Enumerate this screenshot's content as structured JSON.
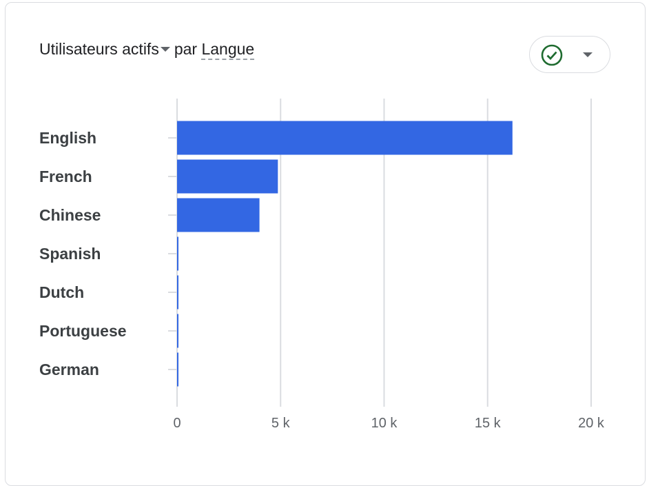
{
  "header": {
    "metric_label": "Utilisateurs actifs",
    "by_label": "par",
    "dimension_label": "Langue",
    "status_icon": "check-circle-icon",
    "status_color": "#1e6b2f"
  },
  "chart_data": {
    "type": "bar",
    "orientation": "horizontal",
    "categories": [
      "English",
      "French",
      "Chinese",
      "Spanish",
      "Dutch",
      "Portuguese",
      "German"
    ],
    "values": [
      16200,
      4870,
      3980,
      60,
      60,
      60,
      60
    ],
    "xlim": [
      0,
      20000
    ],
    "xticks": [
      0,
      5000,
      10000,
      15000,
      20000
    ],
    "xtick_labels": [
      "0",
      "5 k",
      "10 k",
      "15 k",
      "20 k"
    ],
    "grid": true,
    "bar_color": "#3367e3",
    "title": "",
    "xlabel": "",
    "ylabel": ""
  }
}
